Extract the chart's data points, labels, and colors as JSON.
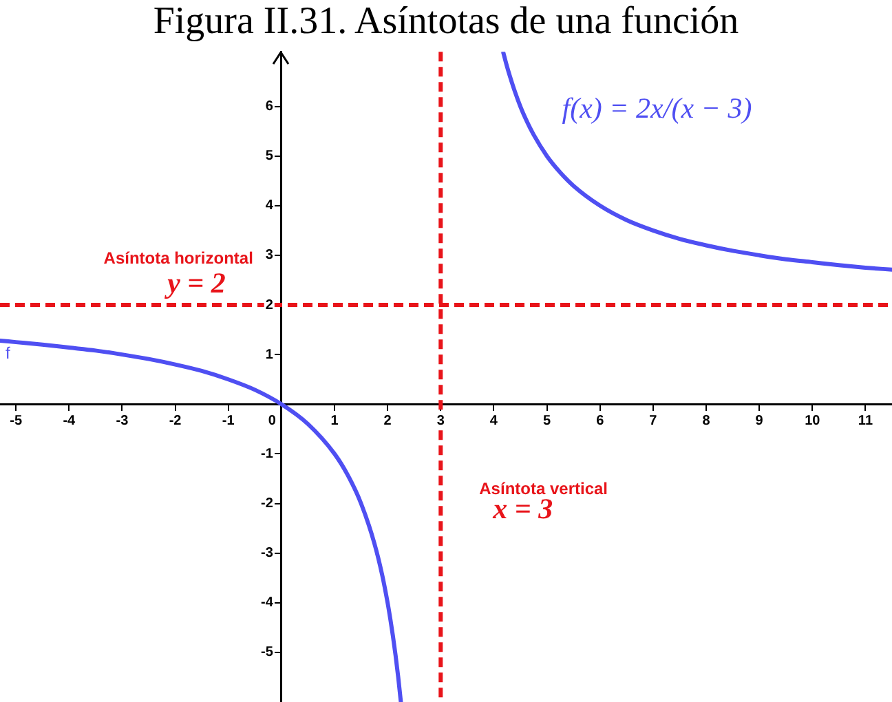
{
  "chart_data": {
    "type": "line",
    "title": "Figura II.31. Asíntotas de una función",
    "xlim": [
      -5.3,
      11.5
    ],
    "ylim": [
      -6,
      7.1
    ],
    "xticks": [
      -5,
      -4,
      -3,
      -2,
      -1,
      0,
      1,
      2,
      3,
      4,
      5,
      6,
      7,
      8,
      9,
      10,
      11
    ],
    "yticks": [
      -5,
      -4,
      -3,
      -2,
      -1,
      {
        "value": 0,
        "label": null
      },
      1,
      2,
      3,
      4,
      5,
      6
    ],
    "series": [
      {
        "name": "f",
        "color": "#4f4ff2",
        "line_style": "solid",
        "x": [
          -5.3,
          -5,
          -4.5,
          -4,
          -3.5,
          -3,
          -2.5,
          -2,
          -1.5,
          -1,
          -0.5,
          0,
          0.5,
          1,
          1.25,
          1.5,
          1.75,
          1.9,
          2,
          2.05,
          2.1,
          2.15,
          2.2,
          2.25,
          3,
          4.18,
          4.25,
          4.3,
          4.4,
          4.5,
          4.6,
          4.75,
          5,
          5.25,
          5.5,
          6,
          6.5,
          7,
          7.5,
          8,
          8.5,
          9,
          9.5,
          10,
          10.5,
          11,
          11.5
        ],
        "values": [
          1.28,
          1.25,
          1.2,
          1.14,
          1.08,
          1,
          0.91,
          0.8,
          0.67,
          0.5,
          0.29,
          0,
          -0.4,
          -1,
          -1.43,
          -2,
          -2.8,
          -3.45,
          -4,
          -4.32,
          -4.67,
          -5.06,
          -5.5,
          -6,
          null,
          7.08,
          6.8,
          6.62,
          6.29,
          6,
          5.75,
          5.43,
          5,
          4.67,
          4.4,
          4,
          3.71,
          3.5,
          3.33,
          3.2,
          3.09,
          3,
          2.92,
          2.86,
          2.8,
          2.75,
          2.71
        ]
      }
    ],
    "marker": "none",
    "grid": false,
    "legend": false,
    "ref_lines": [
      {
        "axis": "y",
        "value": 2,
        "label": "Asíntota horizontal",
        "color": "#e8141a",
        "line_style": "dashed"
      },
      {
        "axis": "x",
        "value": 3,
        "label": "Asíntota vertical",
        "color": "#e8141a",
        "line_style": "dashed"
      }
    ],
    "annotations": [
      "f(x) = 2x/(x − 3)",
      {
        "text": "y = 2",
        "x": -1.6,
        "y": 2
      },
      {
        "text": "x = 3",
        "x": 3,
        "y": -2.3
      }
    ]
  }
}
